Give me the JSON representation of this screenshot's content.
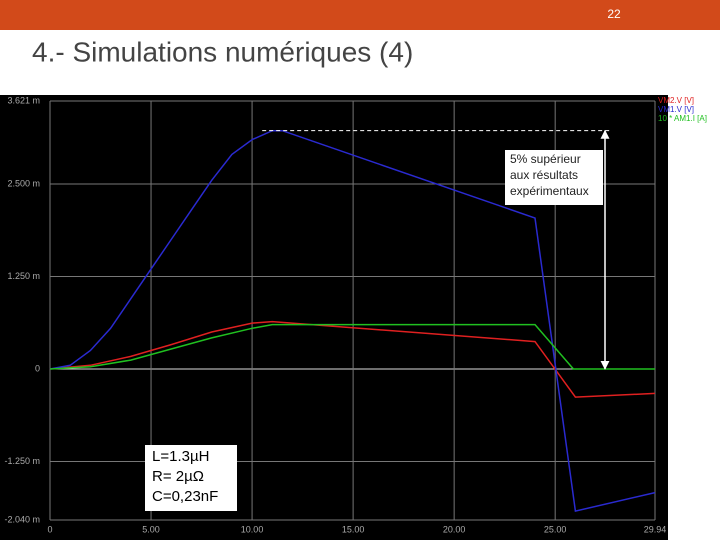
{
  "slide_number": "22",
  "heading": "4.- Simulations numériques (4)",
  "parameters": [
    "L=1.3µH",
    "R= 2µΩ",
    "C=0,23nF"
  ],
  "chart_data": {
    "type": "line",
    "annotation": "5% supérieur aux résultats expérimentaux",
    "xlim": [
      0,
      29.94
    ],
    "xticks": [
      0,
      {
        "value": 5,
        "label": "5.00"
      },
      {
        "value": 10,
        "label": "10.00"
      },
      {
        "value": 15,
        "label": "15.00"
      },
      {
        "value": 20,
        "label": "20.00"
      },
      {
        "value": 25,
        "label": "25.00"
      },
      29.94
    ],
    "ylim": [
      -2.04,
      3.621
    ],
    "yticks": [
      {
        "value": -2.04,
        "label": "-2.040 m"
      },
      {
        "value": -1.25,
        "label": "-1.250 m"
      },
      0,
      {
        "value": 1.25,
        "label": "1.250 m"
      },
      {
        "value": 2.5,
        "label": "2.500 m"
      },
      {
        "value": 3.621,
        "label": "3.621 m"
      }
    ],
    "grid": true,
    "legend": "top-right",
    "series": [
      {
        "name": "VM2.V [V]",
        "color": "#e02020",
        "x": [
          0,
          2,
          4,
          6,
          8,
          10,
          11,
          24,
          26,
          29.94
        ],
        "values": [
          0,
          0.05,
          0.17,
          0.33,
          0.5,
          0.62,
          0.64,
          0.37,
          -0.38,
          -0.33
        ]
      },
      {
        "name": "VM1.V [V]",
        "color": "#2a2ad0",
        "x": [
          0,
          1,
          2,
          3,
          4,
          5,
          6,
          7,
          8,
          9,
          10,
          11,
          11.5,
          24,
          26,
          29.94
        ],
        "values": [
          0,
          0.05,
          0.25,
          0.55,
          0.95,
          1.35,
          1.75,
          2.15,
          2.55,
          2.9,
          3.1,
          3.22,
          3.22,
          2.04,
          -1.92,
          -1.67
        ]
      },
      {
        "name": "10 * AM1.I [A]",
        "color": "#20c020",
        "x": [
          0,
          2,
          4,
          6,
          8,
          10,
          11,
          24,
          25.9,
          29.94
        ],
        "values": [
          0,
          0.03,
          0.12,
          0.27,
          0.42,
          0.55,
          0.6,
          0.6,
          0,
          0
        ]
      }
    ]
  }
}
